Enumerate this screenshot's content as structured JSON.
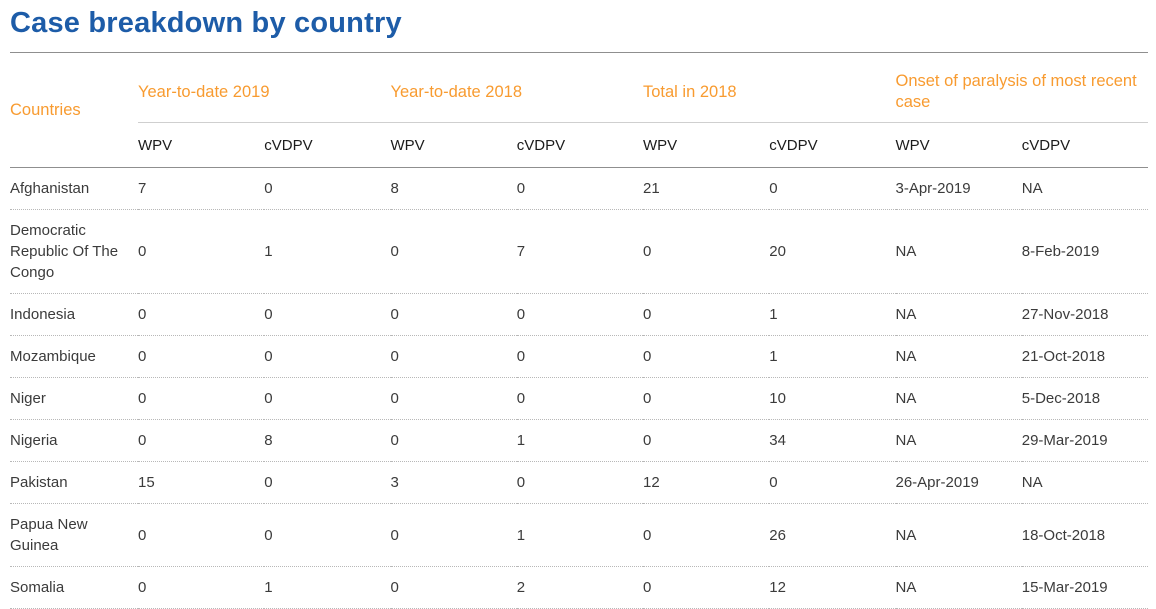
{
  "page_title": "Case breakdown by country",
  "table": {
    "countries_label": "Countries",
    "groups": [
      {
        "label": "Year-to-date 2019"
      },
      {
        "label": "Year-to-date 2018"
      },
      {
        "label": "Total in 2018"
      },
      {
        "label": "Onset of paralysis of most recent case"
      }
    ],
    "subheaders": [
      "WPV",
      "cVDPV",
      "WPV",
      "cVDPV",
      "WPV",
      "cVDPV",
      "WPV",
      "cVDPV"
    ],
    "rows": [
      {
        "country": "Afghanistan",
        "values": [
          "7",
          "0",
          "8",
          "0",
          "21",
          "0",
          "3-Apr-2019",
          "NA"
        ]
      },
      {
        "country": "Democratic Republic Of The Congo",
        "values": [
          "0",
          "1",
          "0",
          "7",
          "0",
          "20",
          "NA",
          "8-Feb-2019"
        ]
      },
      {
        "country": "Indonesia",
        "values": [
          "0",
          "0",
          "0",
          "0",
          "0",
          "1",
          "NA",
          "27-Nov-2018"
        ]
      },
      {
        "country": "Mozambique",
        "values": [
          "0",
          "0",
          "0",
          "0",
          "0",
          "1",
          "NA",
          "21-Oct-2018"
        ]
      },
      {
        "country": "Niger",
        "values": [
          "0",
          "0",
          "0",
          "0",
          "0",
          "10",
          "NA",
          "5-Dec-2018"
        ]
      },
      {
        "country": "Nigeria",
        "values": [
          "0",
          "8",
          "0",
          "1",
          "0",
          "34",
          "NA",
          "29-Mar-2019"
        ]
      },
      {
        "country": "Pakistan",
        "values": [
          "15",
          "0",
          "3",
          "0",
          "12",
          "0",
          "26-Apr-2019",
          "NA"
        ]
      },
      {
        "country": "Papua New Guinea",
        "values": [
          "0",
          "0",
          "0",
          "1",
          "0",
          "26",
          "NA",
          "18-Oct-2018"
        ]
      },
      {
        "country": "Somalia",
        "values": [
          "0",
          "1",
          "0",
          "2",
          "0",
          "12",
          "NA",
          "15-Mar-2019"
        ]
      }
    ]
  },
  "colors": {
    "title": "#1d5ca8",
    "accent_orange": "#f89b30",
    "text": "#3b3b3b",
    "subheader_text": "#1c1c1c",
    "rule_dark": "#8f8f8f",
    "rule_light": "#cfcfcf",
    "rule_dotted": "#b8b8b8"
  }
}
